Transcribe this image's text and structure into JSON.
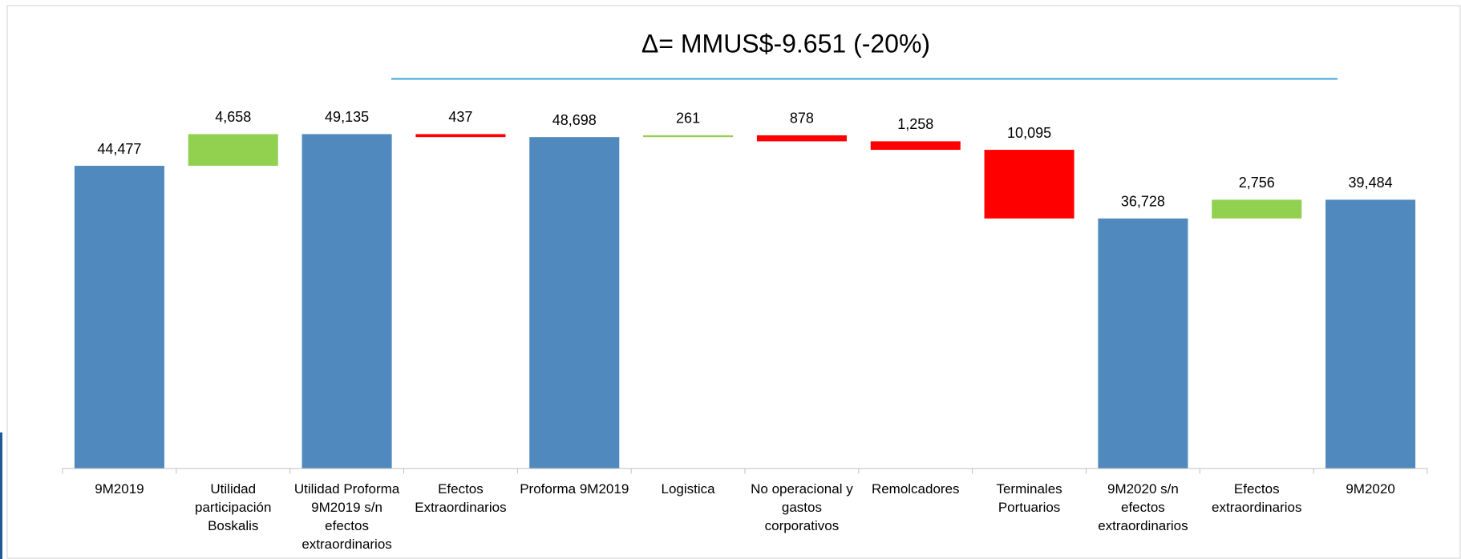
{
  "chart_data": {
    "type": "waterfall",
    "title": "Δ= MMUS$-9.651 (-20%)",
    "categories": [
      "9M2019",
      "Utilidad participación Boskalis",
      "Utilidad Proforma 9M2019 s/n efectos extraordinarios",
      "Efectos Extraordinarios",
      "Proforma 9M2019",
      "Logistica",
      "No operacional  y gastos corporativos",
      "Remolcadores",
      "Terminales Portuarios",
      "9M2020 s/n efectos extraordinarios",
      "Efectos extraordinarios",
      "9M2020"
    ],
    "values": [
      44477,
      4658,
      49135,
      437,
      48698,
      261,
      878,
      1258,
      10095,
      36728,
      2756,
      39484
    ],
    "value_labels": [
      "44,477",
      "4,658",
      "49,135",
      "437",
      "48,698",
      "261",
      "878",
      "1,258",
      "10,095",
      "36,728",
      "2,756",
      "39,484"
    ],
    "kinds": [
      "total",
      "increase",
      "total",
      "decrease",
      "total",
      "increase",
      "decrease",
      "decrease",
      "decrease",
      "total",
      "increase",
      "total"
    ],
    "colors": {
      "total": "#4f89bd",
      "increase": "#92d050",
      "decrease": "#ff0000"
    },
    "ylim": [
      0,
      55000
    ]
  }
}
